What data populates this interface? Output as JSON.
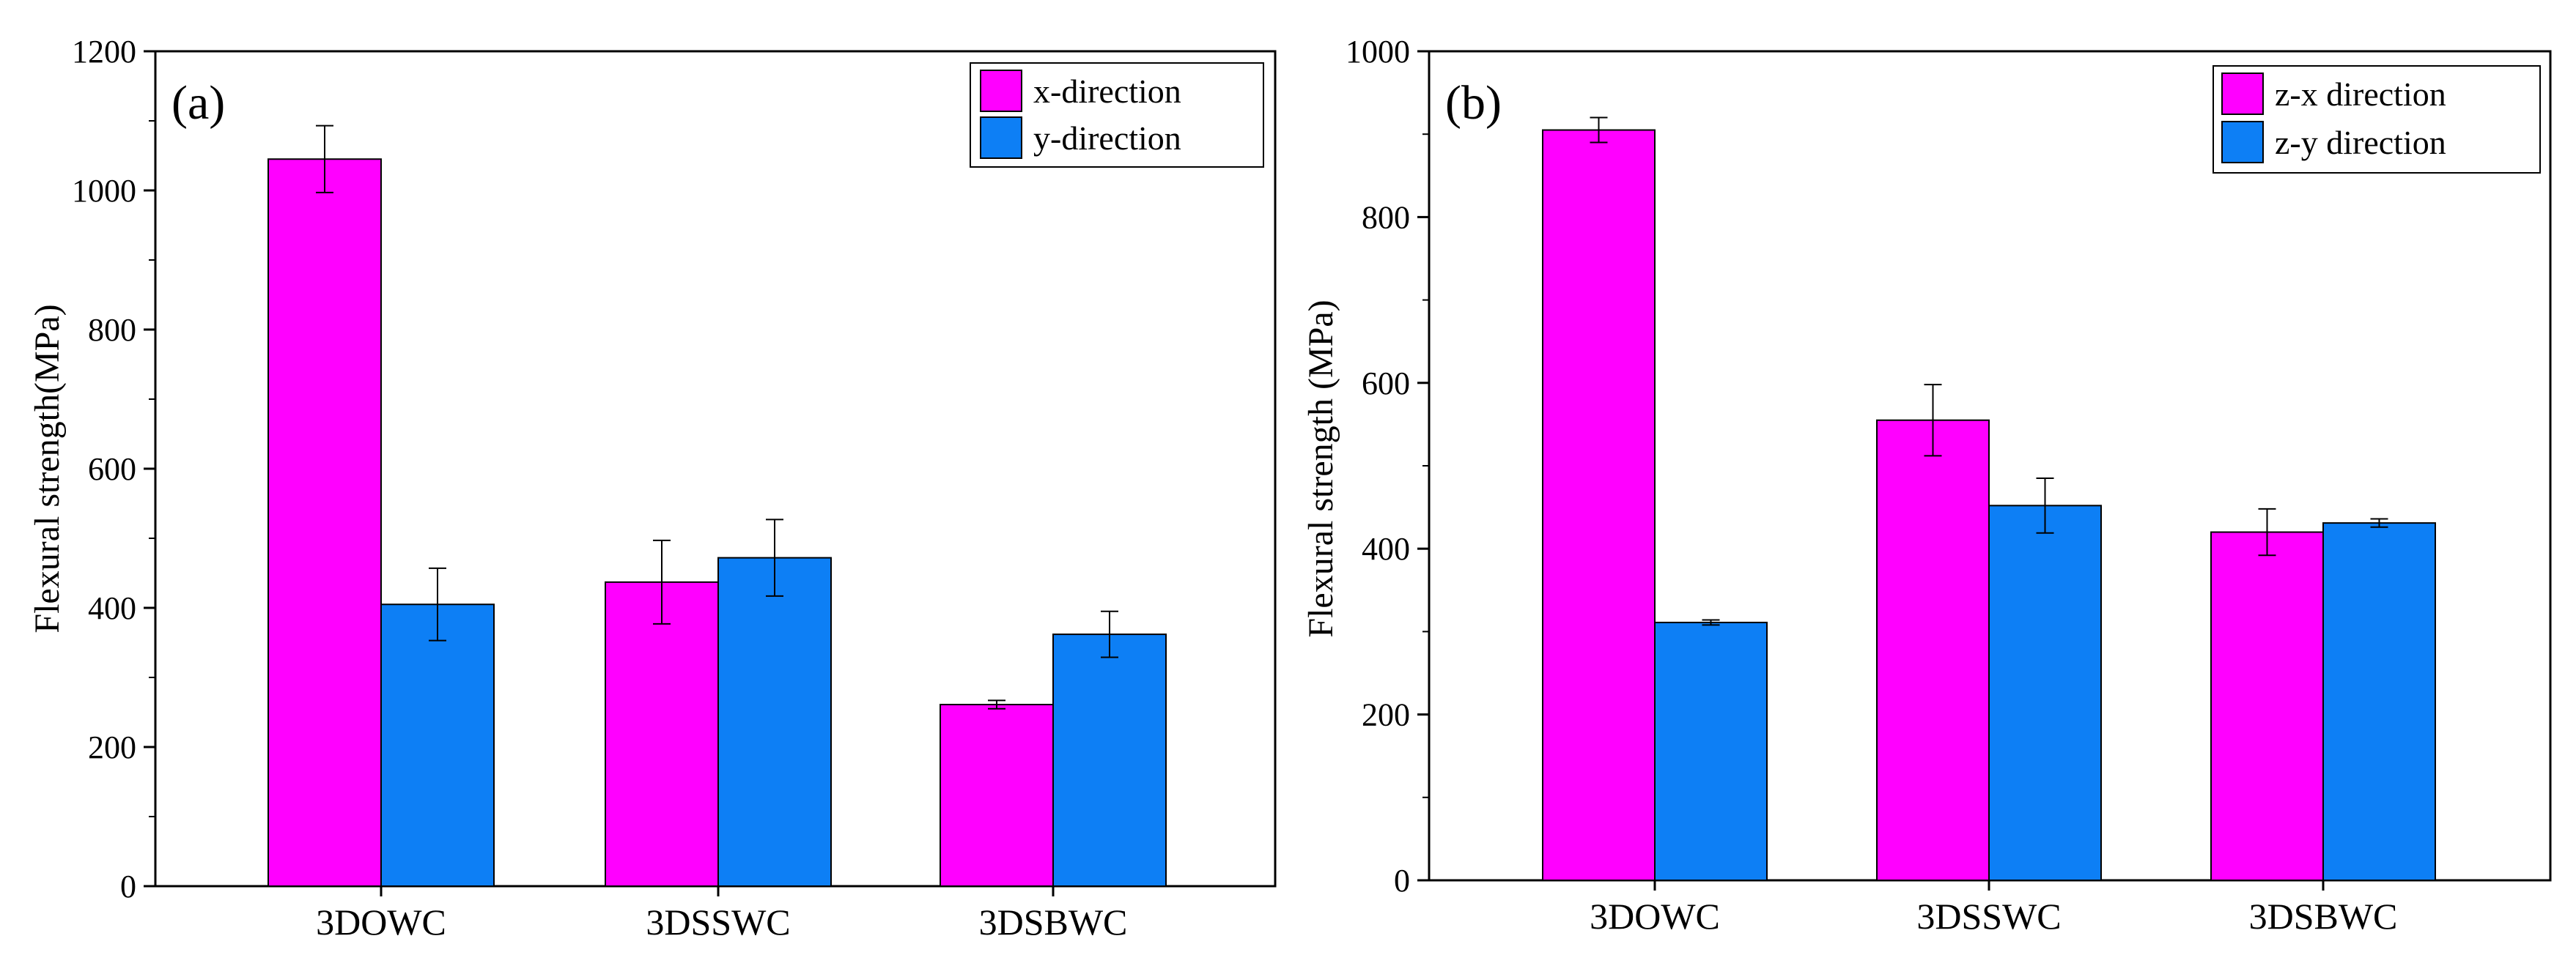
{
  "chart_data": [
    {
      "type": "bar",
      "panel_label": "(a)",
      "ylabel": "Flexural strength(MPa)",
      "xlabel": "",
      "ylim": [
        0,
        1200
      ],
      "yticks": [
        0,
        200,
        400,
        600,
        800,
        1000,
        1200
      ],
      "categories": [
        "3DOWC",
        "3DSSWC",
        "3DSBWC"
      ],
      "legend_position": "top-right",
      "series": [
        {
          "name": "x-direction",
          "color": "#ff00ff",
          "values": [
            1045,
            437,
            261
          ],
          "errors": [
            48,
            60,
            6
          ]
        },
        {
          "name": "y-direction",
          "color": "#0d7ff5",
          "values": [
            405,
            472,
            362
          ],
          "errors": [
            52,
            55,
            33
          ]
        }
      ]
    },
    {
      "type": "bar",
      "panel_label": "(b)",
      "ylabel": "Flexural strength (MPa)",
      "xlabel": "",
      "ylim": [
        0,
        1000
      ],
      "yticks": [
        0,
        200,
        400,
        600,
        800,
        1000
      ],
      "categories": [
        "3DOWC",
        "3DSSWC",
        "3DSBWC"
      ],
      "legend_position": "top-right",
      "series": [
        {
          "name": "z-x direction",
          "color": "#ff00ff",
          "values": [
            905,
            555,
            420
          ],
          "errors": [
            15,
            43,
            28
          ]
        },
        {
          "name": "z-y direction",
          "color": "#0d7ff5",
          "values": [
            311,
            452,
            431
          ],
          "errors": [
            3,
            33,
            5
          ]
        }
      ]
    }
  ]
}
